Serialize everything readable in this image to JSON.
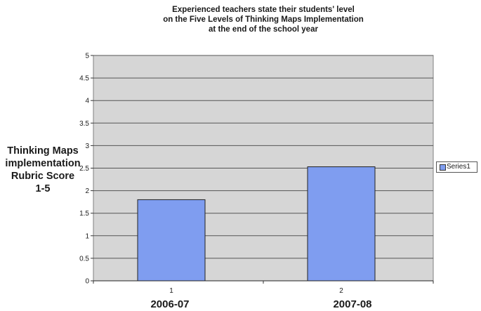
{
  "chart_data": {
    "type": "bar",
    "title_lines": [
      "Experienced teachers state their students' level",
      "on the Five Levels of Thinking Maps Implementation",
      "at the end of the school year"
    ],
    "ylabel_lines": [
      "Thinking Maps",
      "implementation",
      "Rubric Score",
      "1-5"
    ],
    "categories": [
      "1",
      "2"
    ],
    "category_labels": [
      "2006-07",
      "2007-08"
    ],
    "series": [
      {
        "name": "Series1",
        "values": [
          1.8,
          2.53
        ],
        "color": "#7f9df0"
      }
    ],
    "ylim": [
      0,
      5
    ],
    "yticks": [
      "0",
      "0.5",
      "1",
      "1.5",
      "2",
      "2.5",
      "3",
      "3.5",
      "4",
      "4.5",
      "5"
    ],
    "grid": true,
    "plot_background": "#d6d6d6",
    "legend_position": "right"
  }
}
